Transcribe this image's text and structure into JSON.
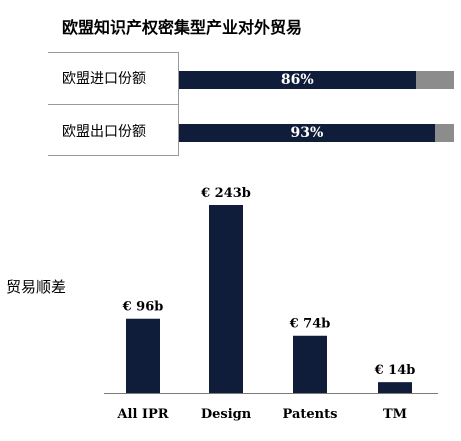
{
  "title": "欧盟知识产权密集型产业对外贸易",
  "share": {
    "rows": [
      {
        "label": "欧盟进口份额",
        "value": 86,
        "value_label": "86%"
      },
      {
        "label": "欧盟出口份额",
        "value": 93,
        "value_label": "93%"
      }
    ],
    "colors": {
      "fill": "#0f1d3a",
      "remainder": "#8c8c8c"
    }
  },
  "balance_label": "贸易顺差",
  "chart_data": {
    "type": "bar",
    "title": "",
    "xlabel": "",
    "ylabel": "贸易顺差",
    "categories": [
      "All IPR",
      "Design",
      "Patents",
      "TM"
    ],
    "values": [
      96,
      243,
      74,
      14
    ],
    "data_labels": [
      "€ 96b",
      "€ 243b",
      "€ 74b",
      "€ 14b"
    ],
    "unit": "€ billion",
    "ylim": [
      0,
      260
    ],
    "bar_color": "#0f1d3a"
  }
}
